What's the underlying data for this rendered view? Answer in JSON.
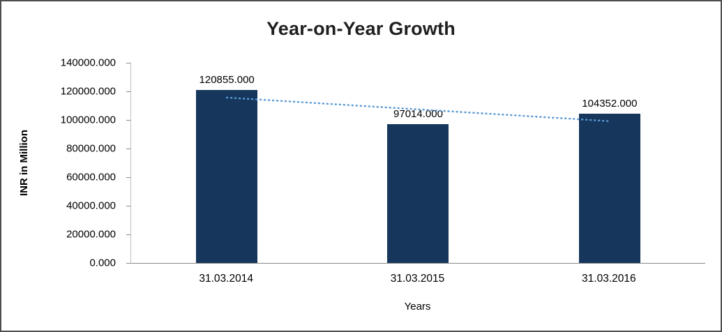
{
  "chart_data": {
    "type": "bar",
    "title": "Year-on-Year Growth",
    "xlabel": "Years",
    "ylabel": "INR in Million",
    "categories": [
      "31.03.2014",
      "31.03.2015",
      "31.03.2016"
    ],
    "values": [
      120855,
      97014,
      104352
    ],
    "value_labels": [
      "120855.000",
      "97014.000",
      "104352.000"
    ],
    "y_ticks": [
      "0.000",
      "20000.000",
      "40000.000",
      "60000.000",
      "80000.000",
      "100000.000",
      "120000.000",
      "140000.000"
    ],
    "ylim": [
      0,
      140000
    ],
    "grid": false,
    "legend": "none",
    "bar_color": "#16365C",
    "trendline": {
      "type": "linear",
      "style": "dotted",
      "color": "#5B9BD5",
      "start_value": 115659,
      "end_value": 99156
    }
  }
}
